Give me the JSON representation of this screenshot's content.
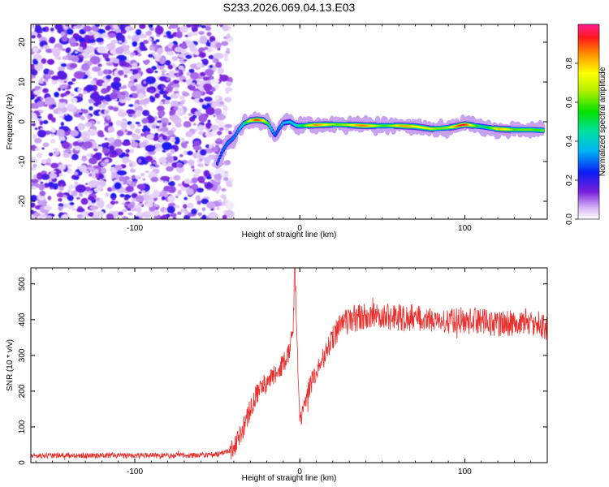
{
  "chart_data": [
    {
      "type": "heatmap",
      "title": "S233.2026.069.04.13.E03",
      "xlabel": "Height of straight line (km)",
      "ylabel": "Frequency (Hz)",
      "xlim": [
        -163,
        150
      ],
      "ylim": [
        -24.5,
        24.5
      ],
      "x_ticks": [
        -100,
        0,
        100
      ],
      "y_ticks": [
        -20,
        -10,
        0,
        10,
        20
      ],
      "colorbar": {
        "label": "Normalized spectral amplitude",
        "range": [
          0,
          1
        ],
        "ticks": [
          0.0,
          0.2,
          0.4,
          0.6,
          0.8
        ]
      },
      "noise_region": {
        "x_from": -163,
        "x_to": -46,
        "note": "scattered low-amplitude speckle"
      },
      "ridge": {
        "note": "frequency peak of the signal ridge vs height",
        "points": [
          {
            "x": -50,
            "y": -10.5,
            "amp": 0.25
          },
          {
            "x": -47,
            "y": -7.5,
            "amp": 0.3
          },
          {
            "x": -44,
            "y": -5.5,
            "amp": 0.35
          },
          {
            "x": -40,
            "y": -4.0,
            "amp": 0.4
          },
          {
            "x": -37,
            "y": -2.0,
            "amp": 0.45
          },
          {
            "x": -34,
            "y": -0.5,
            "amp": 0.55
          },
          {
            "x": -30,
            "y": 0.3,
            "amp": 0.8
          },
          {
            "x": -26,
            "y": 0.5,
            "amp": 0.9
          },
          {
            "x": -22,
            "y": 0.3,
            "amp": 0.7
          },
          {
            "x": -19,
            "y": -0.5,
            "amp": 0.5
          },
          {
            "x": -17,
            "y": -2.0,
            "amp": 0.4
          },
          {
            "x": -15,
            "y": -3.5,
            "amp": 0.3
          },
          {
            "x": -13,
            "y": -2.0,
            "amp": 0.35
          },
          {
            "x": -10,
            "y": -0.3,
            "amp": 0.45
          },
          {
            "x": -6,
            "y": 0.0,
            "amp": 0.5
          },
          {
            "x": -2,
            "y": -1.0,
            "amp": 0.5
          },
          {
            "x": 2,
            "y": -1.0,
            "amp": 0.55
          },
          {
            "x": 10,
            "y": -0.8,
            "amp": 0.8
          },
          {
            "x": 20,
            "y": -0.7,
            "amp": 0.85
          },
          {
            "x": 30,
            "y": -0.8,
            "amp": 0.75
          },
          {
            "x": 40,
            "y": -1.0,
            "amp": 0.8
          },
          {
            "x": 50,
            "y": -1.0,
            "amp": 0.75
          },
          {
            "x": 60,
            "y": -1.0,
            "amp": 0.85
          },
          {
            "x": 70,
            "y": -1.2,
            "amp": 0.7
          },
          {
            "x": 80,
            "y": -1.8,
            "amp": 0.9
          },
          {
            "x": 90,
            "y": -1.5,
            "amp": 0.7
          },
          {
            "x": 100,
            "y": -0.7,
            "amp": 0.9
          },
          {
            "x": 110,
            "y": -1.2,
            "amp": 0.6
          },
          {
            "x": 120,
            "y": -1.8,
            "amp": 0.85
          },
          {
            "x": 130,
            "y": -2.0,
            "amp": 0.55
          },
          {
            "x": 140,
            "y": -2.0,
            "amp": 0.8
          },
          {
            "x": 148,
            "y": -2.2,
            "amp": 0.7
          }
        ]
      }
    },
    {
      "type": "line",
      "xlabel": "Height of straight line (km)",
      "ylabel": "SNR (10 * v/v)",
      "xlim": [
        -163,
        150
      ],
      "ylim": [
        0,
        545
      ],
      "x_ticks": [
        -100,
        0,
        100
      ],
      "y_ticks": [
        0,
        100,
        200,
        300,
        400,
        500
      ],
      "color": "#e8302e",
      "series": [
        {
          "name": "SNR",
          "note": "noisy trace; anchor points of its mean trend",
          "x": [
            -163,
            -120,
            -80,
            -50,
            -40,
            -35,
            -30,
            -25,
            -20,
            -15,
            -10,
            -6,
            -4,
            -3,
            0,
            2,
            5,
            10,
            15,
            20,
            25,
            30,
            40,
            50,
            60,
            70,
            80,
            90,
            100,
            110,
            120,
            130,
            140,
            150
          ],
          "y": [
            20,
            20,
            20,
            22,
            35,
            90,
            150,
            200,
            225,
            245,
            280,
            310,
            380,
            545,
            110,
            145,
            205,
            250,
            300,
            350,
            380,
            400,
            410,
            410,
            405,
            405,
            400,
            395,
            400,
            395,
            390,
            390,
            395,
            380
          ]
        }
      ]
    }
  ]
}
